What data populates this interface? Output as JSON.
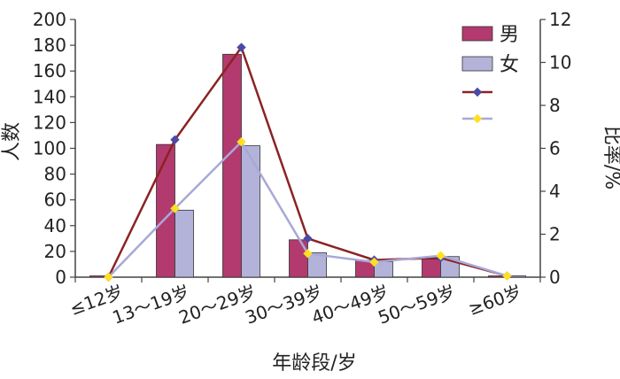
{
  "chart_data": {
    "type": "bar",
    "categories": [
      "≤12岁",
      "13～19岁",
      "20～29岁",
      "30～39岁",
      "40～49岁",
      "50～59岁",
      "≥60岁"
    ],
    "xlabel": "年龄段/岁",
    "ylabel": "人数",
    "ylabel_right": "比率/%",
    "ylim": [
      0,
      200
    ],
    "yticks": [
      "0",
      "20",
      "40",
      "60",
      "80",
      "100",
      "120",
      "140",
      "160",
      "180",
      "200"
    ],
    "ylim_right": [
      0,
      12
    ],
    "yticks_right": [
      "0",
      "2",
      "4",
      "6",
      "8",
      "10",
      "12"
    ],
    "grid": false,
    "legend_position": "top-right",
    "series": [
      {
        "name": "男",
        "kind": "bar",
        "axis": "left",
        "color": "#b23a6e",
        "values": [
          1,
          103,
          173,
          29,
          13,
          14,
          1
        ]
      },
      {
        "name": "女",
        "kind": "bar",
        "axis": "left",
        "color": "#b3b3d9",
        "values": [
          0,
          52,
          102,
          19,
          12,
          16,
          1
        ]
      },
      {
        "name": "",
        "kind": "line",
        "axis": "right",
        "color": "#8b2323",
        "marker_color": "#4a4aa8",
        "values": [
          0,
          6.4,
          10.7,
          1.8,
          0.8,
          0.9,
          0.06
        ]
      },
      {
        "name": "",
        "kind": "line",
        "axis": "right",
        "color": "#a8a8d8",
        "marker_color": "#ffe020",
        "values": [
          0,
          3.2,
          6.3,
          1.1,
          0.7,
          1.0,
          0.06
        ]
      }
    ]
  }
}
